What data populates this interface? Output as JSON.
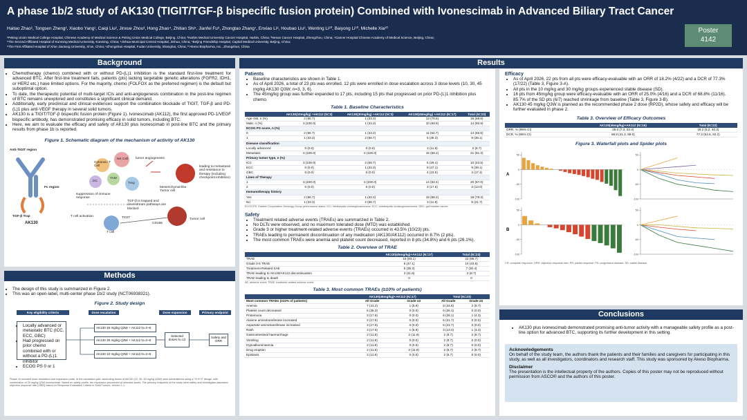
{
  "header": {
    "title": "A phase 1b/2 study of AK130 (TIGIT/TGF-β bispecific fusion protein) Combined with Ivonescimab in Advanced Biliary Tract Cancer",
    "authors": "Haitao Zhao¹, Tongsen Zheng², Xiaobo Yang¹, Caiqi Liu², Jinxue Zhou³, Hong Zhao⁴, Zhitian Shi⁵, Jianfei Fu⁶, Zhongtao Zhang⁷, Enxiao Li⁸, Houbao Liu⁹, Wenting Li¹⁰, Baiyong Li¹⁰, Michelle Xia¹⁰",
    "affiliations": [
      "¹Peking Union Medical College Hospital, Chinese Academy of Medical Science & Peking Union Medical College, Beijing, China; ²Harbin Medical University Cancer Hospital, Harbin, China; ³Henan Cancer Hospital, Zhengzhou, China; ⁴Cancer Hospital Chinese Academy of Medical Science, Beijing, China;",
      "⁵The Second Affiliated Hospital of Kunming Medical University, Kunming, China; ⁶Jinhua Municipal Central Hospital, Jinhua, China; ⁷Beijing Friendship Hospital, Capital Medical University, Beijing, China;",
      "⁸The First Affiliated Hospital of Xi'an Jiaotong University, Xi'an, China; ⁹Zhongshan Hospital, Fudan University, Shanghai, China; ¹⁰Akeso Biopharma, Inc., Zhongshan, China"
    ]
  },
  "poster": {
    "label": "Poster",
    "number": "4142"
  },
  "background": {
    "heading": "Background",
    "bullets": [
      "Chemotherapy (chemo) combined with or without PD-(L)1 inhibition is the standard first-line treatment for advanced BTC. After first-line treatment fails, patients (pts) lacking targetable genetic alterations (FGFR2, IDH1, or HER2 etc.) have limited options. For the majority, chemo (FOLFOX as the preferred regimen) is the default but suboptimal option.",
      "To date, the therapeutic potential of multi-target ICIs and anti-angiogenesis combination in the post-line regimen of BTC remains unexplored and constitutes a significant clinical demand.",
      "Additionally, early preclinical and clinical evidences support the combination blockade of TIGIT, TGF-β and PD-(L)1 plus anti-VEGF therapy in several solid tumors.",
      "AK130 is a TIGIT/TGF-β bispecific fusion protein (Figure 1). Ivonescimab (AK112), the first approved PD-1/VEGF bispecific antibody, has demonstrated promising efficacy in solid tumors, including BTC.",
      "Here, we aim to evaluate the efficacy and safety of AK130 plus ivonescimab in post-line BTC and the primary results from phase 1b is reported."
    ]
  },
  "figure1": {
    "caption": "Figure 1. Schematic diagram of the mechanism of activity of AK130",
    "labels": {
      "anti_tigit": "Anti-TIGIT region",
      "fc": "Fc region",
      "trap": "TGF-β Trap",
      "drug": "AK130",
      "nk": "NK Cell",
      "ctl": "Cytotoxic T Cell",
      "tam": "TAM",
      "dc": "DC",
      "treg": "Treg",
      "angio": "tumor angiogenesis",
      "mesen": "Mesenchymal-like Tumor cell",
      "meta": "leading to metastasis and resistance to therapy (including checkpoint inhibition)",
      "suppress": "suppression of immune response",
      "trapped": "TGF-β is trapped and downstream pathways are blocked",
      "activation": "T cell activation",
      "tcell": "T cell",
      "tigit": "TIGIT",
      "cd155": "CD155",
      "tumor": "Tumor cell"
    }
  },
  "methods": {
    "heading": "Methods",
    "bullets": [
      "The design of this study is summarized in Figure 2.",
      "This was an open-label, multi-center phase 1b/2 study (NCT06938321)."
    ]
  },
  "figure2": {
    "caption": "Figure 2. Study design",
    "headers": [
      "Key eligibility criteria",
      "Dose escalation",
      "Dose expansion",
      "Primary endpoint"
    ],
    "criteria": [
      "Locally advanced or metastatic BTC (ICC, ECC, GBC)",
      "Had progressed on prior chemo combined with or without a PD-(L)1 inhibitor",
      "ECOG PS 0 or 1"
    ],
    "doses": [
      "AK130 45 mg/kg Q3W + AK112 N=3~6",
      "AK130 30 mg/kg Q3W + AK112 N=3~6",
      "AK130 10 mg/kg Q3W + AK112 N=3~6"
    ],
    "expansion": "Selected doses N=13",
    "endpoint": "Safety and ORR",
    "notes": "Phase 1b included dose escalation and expansion parts. In the escalation part, ascending doses of AK130 (10, 30, 45 mg/kg Q3W) were administered using a \"3+3+3\" design, with combination of 20 mg/kg Q3W ivonescimab. Based on safety profile, the expansion proceeded at selected doses. The primary endpoints of the study were safety and investigator-assessed objective response rate (ORR) based on Response Evaluation Criteria in Solid Tumors, version 1.1."
  },
  "results": {
    "heading": "Results",
    "patients": {
      "heading": "Patients",
      "bullets": [
        "Baseline characteristics are shown in Table 1.",
        "As of April 2026, a total of 23 pts was enrolled. 12 pts were enrolled in dose escalation across 3 dose levels (10, 30, 45 mg/kg AK130 Q3W; n=3, 3, 6).",
        "The 45mg/kg group was further expanded to 17 pts, including 15 pts that progressed on prior PD-(L)1 inhibition plus chemo."
      ]
    },
    "table1": {
      "caption": "Table 1. Baseline Characteristics",
      "columns": [
        "AK130(10mg/kg) +AK112 (N=3)",
        "AK130(30mg/kg) +AK112 (N=3)",
        "AK130(45mg/kg) +AK112 (N=17)",
        "Total (N=23)"
      ],
      "rows": [
        [
          "Age <65, n (%)",
          "2 (66.7)",
          "1 (33.3)",
          "13 (76.5)",
          "16 (69.6)"
        ],
        [
          "Male, n (%)",
          "3 (100.0)",
          "1 (33.3)",
          "10 (58.8)",
          "14 (60.9)"
        ],
        [
          "ECOG PS score, n (%)"
        ],
        [
          "0",
          "2 (66.7)",
          "1 (33.3)",
          "11 (64.7)",
          "14 (60.9)"
        ],
        [
          "1",
          "1 (33.3)",
          "2 (66.7)",
          "6 (35.3)",
          "9 (39.1)"
        ],
        [
          "Disease classification"
        ],
        [
          "Locally advanced",
          "0 (0.0)",
          "0 (0.0)",
          "2 (11.8)",
          "2 (8.7)"
        ],
        [
          "Metastatic",
          "3 (100.0)",
          "3 (100.0)",
          "15 (88.2)",
          "21 (91.3)"
        ],
        [
          "Primary tumor type, n (%)"
        ],
        [
          "ICC",
          "3 (100.0)",
          "2 (66.7)",
          "5 (29.4)",
          "10 (43.5)"
        ],
        [
          "ECC",
          "0 (0.0)",
          "1 (33.3)",
          "8 (47.1)",
          "9 (39.1)"
        ],
        [
          "GBC",
          "0 (0.0)",
          "0 (0.0)",
          "4 (23.5)",
          "4 (17.4)"
        ],
        [
          "Lines of Therapy"
        ],
        [
          "1",
          "3 (100.0)",
          "3 (100.0)",
          "14 (82.4)",
          "20 (87.0)"
        ],
        [
          "2",
          "0 (0.0)",
          "0 (0.0)",
          "3 (17.6)",
          "3 (13.0)"
        ],
        [
          "Immunotherapy history"
        ],
        [
          "Yes",
          "2 (66.7)",
          "1 (33.3)",
          "15 (88.2)",
          "18 (78.3)"
        ],
        [
          "No",
          "1 (33.3)",
          "2 (66.7)",
          "2 (11.8)",
          "5 (21.7)"
        ]
      ],
      "footnote": "ECOG PS: Eastern Cooperative Oncology Group performance status. ICC: intrahepatic cholangiocarcinoma. ECC: extrahepatic cholangiocarcinoma. GBC: gall bladder cancer."
    },
    "safety": {
      "heading": "Safety",
      "bullets": [
        "Treatment related adverse events (TRAEs) are summarized in Table 2.",
        "No DLTs were observed, and no maximum tolerated dose (MTD) was established.",
        "Grade 3 or higher treatment-related adverse events (TRAEs) occurred in 43.5% (10/23) pts.",
        "TRAEs leading to permanent discontinuation of any medication (AK130/AK112) occurred in 8.7% (2 pts).",
        "The most common TRAEs were anemia and platelet count decreased, reported in 8 pts (34.8%) and 6 pts (26.1%)."
      ]
    },
    "table2": {
      "caption": "Table 2. Overview of TRAE",
      "columns": [
        "AK130(45mg/kg)+AK112 (N=17)",
        "Total (N=23)"
      ],
      "rows": [
        [
          "TRAE",
          "16 (94.1)",
          "22 (95.7)"
        ],
        [
          "Grade 3-5 TRAE",
          "8 (47.1)",
          "10 (43.5)"
        ],
        [
          "Treatment-Related SAE",
          "6 (35.3)",
          "7 (30.4)"
        ],
        [
          "TRAE leading to AK130/AK112 discontinuation",
          "2 (11.8)",
          "2 (8.7)"
        ],
        [
          "TRAE leading to death",
          "0",
          "0"
        ]
      ],
      "footnote": "AE, adverse event; TRAE, treatment-related adverse event."
    },
    "table3": {
      "caption": "Table 3. Most common TRAEs (≥10% of patients)",
      "columns": [
        "AK130(45mg/kg)+AK112 (N=17)",
        "Total (N=23)"
      ],
      "subheader": [
        "Most common TRAEs (≥10% of patients)",
        "All Grade",
        "Grade ≥3",
        "All Grade",
        "Grade ≥3"
      ],
      "rows": [
        [
          "Anemia",
          "7 (41.2)",
          "1 (5.9)",
          "8 (34.8)",
          "2 (8.7)"
        ],
        [
          "Platelet count decreased",
          "6 (35.3)",
          "0 (0.0)",
          "6 (26.1)",
          "0 (0.0)"
        ],
        [
          "Proteinuria",
          "3 (17.6)",
          "0 (0.0)",
          "6 (26.1)",
          "1 (4.3)"
        ],
        [
          "Alanine aminotransferase increased",
          "3 (17.6)",
          "0 (0.0)",
          "5 (21.7)",
          "0 (0.0)"
        ],
        [
          "Aspartate aminotransferase increased",
          "3 (17.6)",
          "0 (0.0)",
          "5 (21.7)",
          "0 (0.0)"
        ],
        [
          "Rash",
          "3 (17.6)",
          "1 (5.9)",
          "3 (13.0)",
          "1 (4.3)"
        ],
        [
          "Gastrointestinal haemorrhage",
          "2 (11.8)",
          "2 (11.8)",
          "2 (8.7)",
          "2 (8.7)"
        ],
        [
          "Vomiting",
          "2 (11.8)",
          "0 (0.0)",
          "2 (8.7)",
          "0 (0.0)"
        ],
        [
          "Hypoalbuminaemia",
          "2 (11.8)",
          "0 (0.0)",
          "2 (8.7)",
          "0 (0.0)"
        ],
        [
          "Drug eruption",
          "2 (11.8)",
          "2 (11.8)",
          "2 (8.7)",
          "2 (8.7)"
        ],
        [
          "Epistaxis",
          "2 (11.8)",
          "0 (0.0)",
          "2 (8.7)",
          "0 (0.0)"
        ]
      ]
    },
    "efficacy": {
      "heading": "Efficacy",
      "bullets": [
        "As of April 2026, 22 pts from all pts were efficacy-evaluable with an ORR of 18.2% (4/22) and a DCR of 77.3% (17/22) (Table 3, Figure 3-A).",
        "All pts in the 10 mg/kg and 30 mg/kg groups experienced stable disease (SD).",
        "16 pts from 45mg/kg group were efficacy-evaluable with an ORR of 25.0% (4/16) and a DCR of 68.8% (11/16). 85.7% of the SD pts (6/7) reached shrinkage from baseline (Table 3, Figure 3-B).",
        "AK130 45 mg/kg Q3W is planned as the recommended phase 2 dose (RP2D), whose safety and efficacy will be further evaluated in phase 2."
      ]
    },
    "table4": {
      "caption": "Table 3. Overview of Efficacy Outcomes",
      "columns": [
        "AK130(45mg/kg)+AK112 (N=16)",
        "Total (N=22)"
      ],
      "rows": [
        [
          "ORR, % (95% CI)",
          "25.0 (7.3, 52.4)",
          "18.2 (5.2, 40.3)"
        ],
        [
          "DCR, % (95% CI)",
          "68.8 (41.3, 89.0)",
          "77.3 (54.6, 92.2)"
        ]
      ]
    },
    "figure3": {
      "caption": "Figure 3. Waterfall plots and Spider plots",
      "panels": [
        {
          "label": "A",
          "waterfall": {
            "type": "bar",
            "ylim": [
              -100,
              60
            ],
            "yticks": [
              -100,
              -50,
              0,
              50
            ],
            "values": [
              40,
              32,
              22,
              15,
              10,
              6,
              3,
              0,
              -4,
              -8,
              -12,
              -15,
              -18,
              -22,
              -26,
              -31,
              -35,
              -42,
              -48,
              -55,
              -70,
              -90
            ],
            "colors": [
              "#e8a33d",
              "#e8a33d",
              "#e8a33d",
              "#e8a33d",
              "#e8a33d",
              "#e8a33d",
              "#e8a33d",
              "#d8452f",
              "#d8452f",
              "#d8452f",
              "#d8452f",
              "#d8452f",
              "#d8452f",
              "#d8452f",
              "#d8452f",
              "#d8452f",
              "#d8452f",
              "#d8452f",
              "#3a7a3a",
              "#3a7a3a",
              "#3a7a3a",
              "#3a7a3a"
            ]
          },
          "spider": {
            "type": "line",
            "x": [
              0,
              6,
              12,
              18,
              24,
              30
            ],
            "xlim": [
              0,
              30
            ],
            "ylim": [
              -100,
              60
            ],
            "yticks": [
              -100,
              -50,
              0,
              50
            ],
            "series": [
              {
                "color": "#e8a33d",
                "values": [
                  0,
                  20,
                  40,
                  null,
                  null,
                  null
                ]
              },
              {
                "color": "#d8452f",
                "values": [
                  0,
                  -10,
                  -20,
                  -25,
                  -30,
                  null
                ]
              },
              {
                "color": "#3a7a3a",
                "values": [
                  0,
                  -30,
                  -50,
                  -60,
                  -70,
                  -75
                ]
              },
              {
                "color": "#7a5fa8",
                "values": [
                  0,
                  5,
                  10,
                  15,
                  null,
                  null
                ]
              },
              {
                "color": "#4e8bc4",
                "values": [
                  0,
                  -15,
                  -35,
                  -45,
                  -48,
                  null
                ]
              },
              {
                "color": "#c9b23a",
                "values": [
                  0,
                  -5,
                  -12,
                  -15,
                  -18,
                  -20
                ]
              }
            ]
          }
        },
        {
          "label": "B",
          "waterfall": {
            "type": "bar",
            "ylim": [
              -100,
              60
            ],
            "yticks": [
              -100,
              -50,
              0,
              50
            ],
            "values": [
              30,
              15,
              5,
              0,
              -8,
              -12,
              -18,
              -25,
              -32,
              -40,
              -48,
              -55,
              -62,
              -70,
              -80,
              -95
            ],
            "colors": [
              "#e8a33d",
              "#e8a33d",
              "#e8a33d",
              "#d8452f",
              "#d8452f",
              "#d8452f",
              "#d8452f",
              "#d8452f",
              "#d8452f",
              "#d8452f",
              "#d8452f",
              "#3a7a3a",
              "#3a7a3a",
              "#3a7a3a",
              "#3a7a3a",
              "#3a7a3a"
            ]
          },
          "spider": {
            "type": "line",
            "x": [
              0,
              6,
              12,
              18,
              24,
              30
            ],
            "xlim": [
              0,
              30
            ],
            "ylim": [
              -100,
              60
            ],
            "yticks": [
              -100,
              -50,
              0,
              50
            ],
            "series": [
              {
                "color": "#e8a33d",
                "values": [
                  0,
                  15,
                  30,
                  null,
                  null,
                  null
                ]
              },
              {
                "color": "#d8452f",
                "values": [
                  0,
                  -8,
                  -15,
                  -20,
                  null,
                  null
                ]
              },
              {
                "color": "#3a7a3a",
                "values": [
                  0,
                  -35,
                  -60,
                  -70,
                  -80,
                  -90
                ]
              },
              {
                "color": "#4e8bc4",
                "values": [
                  0,
                  -20,
                  -40,
                  -45,
                  -50,
                  null
                ]
              },
              {
                "color": "#c9b23a",
                "values": [
                  0,
                  0,
                  -5,
                  -10,
                  -12,
                  -14
                ]
              }
            ]
          }
        }
      ],
      "footnote": "CR: complete response; ORR: objective response rate; PR: partial response; PD: progressive disease; SD: stable disease."
    }
  },
  "conclusions": {
    "heading": "Conclusions",
    "bullets": [
      "AK130 plus ivonescimab demonstrated promising anti-tumor activity with a manageable safety profile as a post-line option for advanced BTC, supporting its further development in this setting."
    ]
  },
  "acknowledgements": {
    "heading": "Acknowledgements",
    "text": "On behalf of the study team, the authors thank the patients and their families and caregivers for participating in this study, as well as all investigators, coordinators and research staff. This study was sponsored by Akeso Biopharma."
  },
  "disclaimer": {
    "heading": "Disclaimer",
    "text": "The presentation is the intellectual property of the authors. Copies of this poster may not be reproduced without permission from ASCO® and the authors of this poster."
  }
}
